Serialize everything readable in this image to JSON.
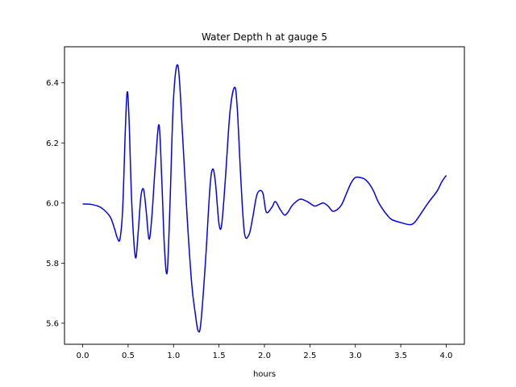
{
  "chart_data": {
    "type": "line",
    "title": "Water Depth h at gauge 5",
    "xlabel": "hours",
    "ylabel": "",
    "xlim": [
      -0.2,
      4.2
    ],
    "ylim": [
      5.53,
      6.52
    ],
    "xticks": [
      0.0,
      0.5,
      1.0,
      1.5,
      2.0,
      2.5,
      3.0,
      3.5,
      4.0
    ],
    "xtick_labels": [
      "0.0",
      "0.5",
      "1.0",
      "1.5",
      "2.0",
      "2.5",
      "3.0",
      "3.5",
      "4.0"
    ],
    "yticks": [
      5.6,
      5.8,
      6.0,
      6.2,
      6.4
    ],
    "ytick_labels": [
      "5.6",
      "5.8",
      "6.0",
      "6.2",
      "6.4"
    ],
    "grid": false,
    "series": [
      {
        "color": "#0000ff",
        "x": [
          0.0,
          0.1,
          0.2,
          0.3,
          0.35,
          0.38,
          0.41,
          0.44,
          0.47,
          0.49,
          0.51,
          0.54,
          0.58,
          0.61,
          0.64,
          0.67,
          0.7,
          0.73,
          0.76,
          0.8,
          0.84,
          0.87,
          0.9,
          0.93,
          0.96,
          1.0,
          1.05,
          1.1,
          1.15,
          1.2,
          1.24,
          1.27,
          1.3,
          1.35,
          1.4,
          1.43,
          1.46,
          1.5,
          1.53,
          1.57,
          1.62,
          1.67,
          1.7,
          1.74,
          1.78,
          1.83,
          1.87,
          1.92,
          1.98,
          2.02,
          2.08,
          2.12,
          2.17,
          2.22,
          2.26,
          2.3,
          2.35,
          2.4,
          2.47,
          2.55,
          2.6,
          2.65,
          2.7,
          2.75,
          2.8,
          2.85,
          2.9,
          2.95,
          3.0,
          3.05,
          3.1,
          3.15,
          3.2,
          3.25,
          3.3,
          3.35,
          3.4,
          3.5,
          3.6,
          3.65,
          3.7,
          3.8,
          3.9,
          3.95,
          4.0
        ],
        "y": [
          5.997,
          5.995,
          5.985,
          5.955,
          5.915,
          5.885,
          5.88,
          5.98,
          6.25,
          6.37,
          6.28,
          6.0,
          5.82,
          5.9,
          6.02,
          6.045,
          5.97,
          5.88,
          5.95,
          6.13,
          6.26,
          6.08,
          5.85,
          5.77,
          5.99,
          6.35,
          6.455,
          6.22,
          5.95,
          5.73,
          5.63,
          5.575,
          5.6,
          5.8,
          6.05,
          6.113,
          6.07,
          5.93,
          5.93,
          6.08,
          6.3,
          6.385,
          6.32,
          6.08,
          5.9,
          5.895,
          5.95,
          6.03,
          6.035,
          5.97,
          5.985,
          6.005,
          5.98,
          5.96,
          5.97,
          5.99,
          6.005,
          6.013,
          6.005,
          5.99,
          5.995,
          6.0,
          5.99,
          5.973,
          5.978,
          5.995,
          6.03,
          6.065,
          6.085,
          6.085,
          6.08,
          6.065,
          6.04,
          6.005,
          5.98,
          5.96,
          5.945,
          5.935,
          5.928,
          5.935,
          5.955,
          6.0,
          6.04,
          6.07,
          6.092
        ]
      }
    ]
  }
}
